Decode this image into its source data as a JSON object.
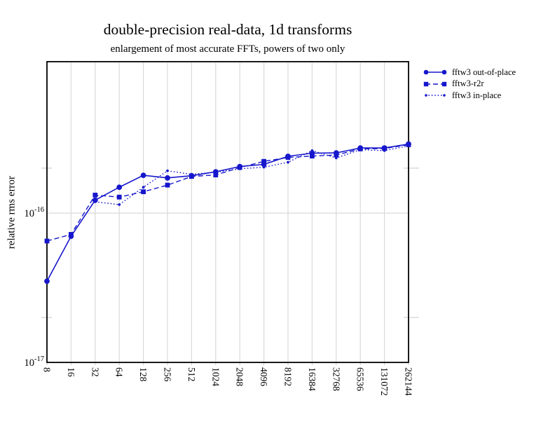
{
  "chart_data": {
    "type": "line",
    "title": "double-precision real-data, 1d transforms",
    "subtitle": "enlargement of most accurate FFTs, powers of two only",
    "ylabel": "relative rms error",
    "x_scale": "log2",
    "y_scale": "log10",
    "categories": [
      8,
      16,
      32,
      64,
      128,
      256,
      512,
      1024,
      2048,
      4096,
      8192,
      16384,
      32768,
      65536,
      131072,
      262144
    ],
    "x_tick_labels_rotated": true,
    "ylim": [
      1e-17,
      1e-15
    ],
    "y_ticks": [
      {
        "base": "10",
        "exp": "-17",
        "value": 1e-17
      },
      {
        "base": "10",
        "exp": "-16",
        "value": 1e-16
      }
    ],
    "y_major_grid_values": [
      1e-16
    ],
    "y_minor_tick_values": [
      2e-17,
      2e-16
    ],
    "grid": true,
    "legend_position": "outside-top-right",
    "series": [
      {
        "name": "fftw3 out-of-place",
        "marker": "circle",
        "line": "solid",
        "start_index": 0,
        "values": [
          3.5e-17,
          7e-17,
          1.22e-16,
          1.49e-16,
          1.79e-16,
          1.72e-16,
          1.78e-16,
          1.89e-16,
          2.05e-16,
          2.12e-16,
          2.4e-16,
          2.52e-16,
          2.53e-16,
          2.73e-16,
          2.73e-16,
          2.9e-16
        ]
      },
      {
        "name": "fftw3-r2r",
        "marker": "square",
        "line": "dashed",
        "start_index": 0,
        "values": [
          6.5e-17,
          7.2e-17,
          1.32e-16,
          1.28e-16,
          1.39e-16,
          1.54e-16,
          1.76e-16,
          1.8e-16,
          2.02e-16,
          2.22e-16,
          2.36e-16,
          2.41e-16,
          2.45e-16,
          2.69e-16,
          2.71e-16,
          2.87e-16
        ]
      },
      {
        "name": "fftw3 in-place",
        "marker": "dot",
        "line": "dotted",
        "start_index": 2,
        "values": [
          1.19e-16,
          1.14e-16,
          1.49e-16,
          1.92e-16,
          1.82e-16,
          1.88e-16,
          1.98e-16,
          2.03e-16,
          2.19e-16,
          2.62e-16,
          2.34e-16,
          2.66e-16,
          2.62e-16,
          2.82e-16
        ]
      }
    ],
    "colors": {
      "series": "#1616cc",
      "grid": "#d9d9d9",
      "minor_tick": "#c9c9c9",
      "frame": "#000000",
      "background": "#ffffff"
    }
  }
}
